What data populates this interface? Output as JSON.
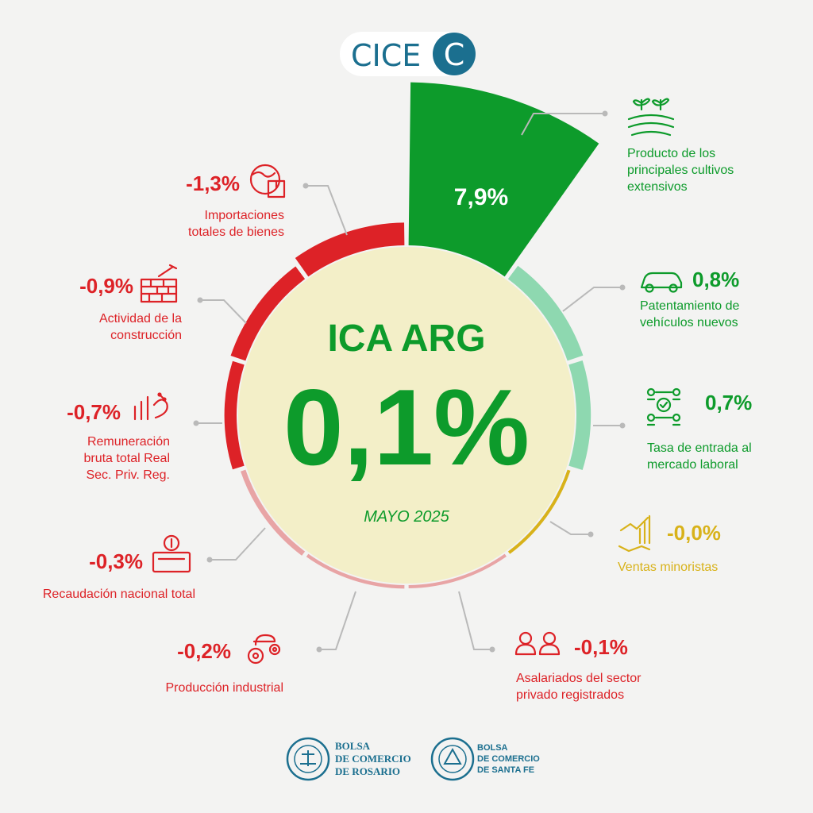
{
  "logo": {
    "text": "CICE",
    "letter": "C"
  },
  "center": {
    "title": "ICA ARG",
    "value": "0,1%",
    "period": "MAYO 2025"
  },
  "colors": {
    "positive_strong": "#0d9b2b",
    "positive_light": "#8ed8b0",
    "neutral": "#d8b21a",
    "negative_strong": "#dd2227",
    "negative_light": "#e8a4a5",
    "center_fill": "#f3efc8",
    "brand": "#1b6f8f"
  },
  "chart_data": {
    "type": "radial_bar",
    "title": "ICA ARG",
    "total": {
      "value": 0.1,
      "label": "0,1%"
    },
    "series": [
      {
        "label": "Producto de los principales cultivos extensivos",
        "value": 7.9,
        "value_label": "7,9%",
        "icon": "crops-icon"
      },
      {
        "label": "Patentamiento de vehículos nuevos",
        "value": 0.8,
        "value_label": "0,8%",
        "icon": "car-icon"
      },
      {
        "label": "Tasa de entrada al mercado laboral",
        "value": 0.7,
        "value_label": "0,7%",
        "icon": "network-people-icon"
      },
      {
        "label": "Ventas minoristas",
        "value": -0.0,
        "value_label": "-0,0%",
        "icon": "retail-sales-icon"
      },
      {
        "label": "Asalariados del sector privado registrados",
        "value": -0.1,
        "value_label": "-0,1%",
        "icon": "people-icon"
      },
      {
        "label": "Producción industrial",
        "value": -0.2,
        "value_label": "-0,2%",
        "icon": "industry-gears-icon"
      },
      {
        "label": "Recaudación nacional total",
        "value": -0.3,
        "value_label": "-0,3%",
        "icon": "tax-box-icon"
      },
      {
        "label": "Remuneración bruta total Real Sec. Priv. Reg.",
        "value": -0.7,
        "value_label": "-0,7%",
        "icon": "salary-chart-icon"
      },
      {
        "label": "Actividad de la construcción",
        "value": -0.9,
        "value_label": "-0,9%",
        "icon": "brick-wall-icon"
      },
      {
        "label": "Importaciones totales de bienes",
        "value": -1.3,
        "value_label": "-1,3%",
        "icon": "globe-import-icon"
      }
    ]
  },
  "labels": [
    {
      "lines": [
        "Producto de los",
        "principales cultivos",
        "extensivos"
      ]
    },
    {
      "lines": [
        "Patentamiento de",
        "vehículos nuevos"
      ]
    },
    {
      "lines": [
        "Tasa de entrada al",
        "mercado laboral"
      ]
    },
    {
      "lines": [
        "Ventas minoristas"
      ]
    },
    {
      "lines": [
        "Asalariados del sector",
        "privado registrados"
      ]
    },
    {
      "lines": [
        "Producción industrial"
      ]
    },
    {
      "lines": [
        "Recaudación nacional total"
      ]
    },
    {
      "lines": [
        "Remuneración",
        "bruta total Real",
        "Sec. Priv. Reg."
      ]
    },
    {
      "lines": [
        "Actividad de la",
        "construcción"
      ]
    },
    {
      "lines": [
        "Importaciones",
        "totales de bienes"
      ]
    }
  ],
  "footer": {
    "rosario": {
      "lines": [
        "BOLSA",
        "DE COMERCIO",
        "DE ROSARIO"
      ]
    },
    "santafe": {
      "lines": [
        "BOLSA",
        "DE COMERCIO",
        "DE SANTA FE"
      ]
    }
  }
}
